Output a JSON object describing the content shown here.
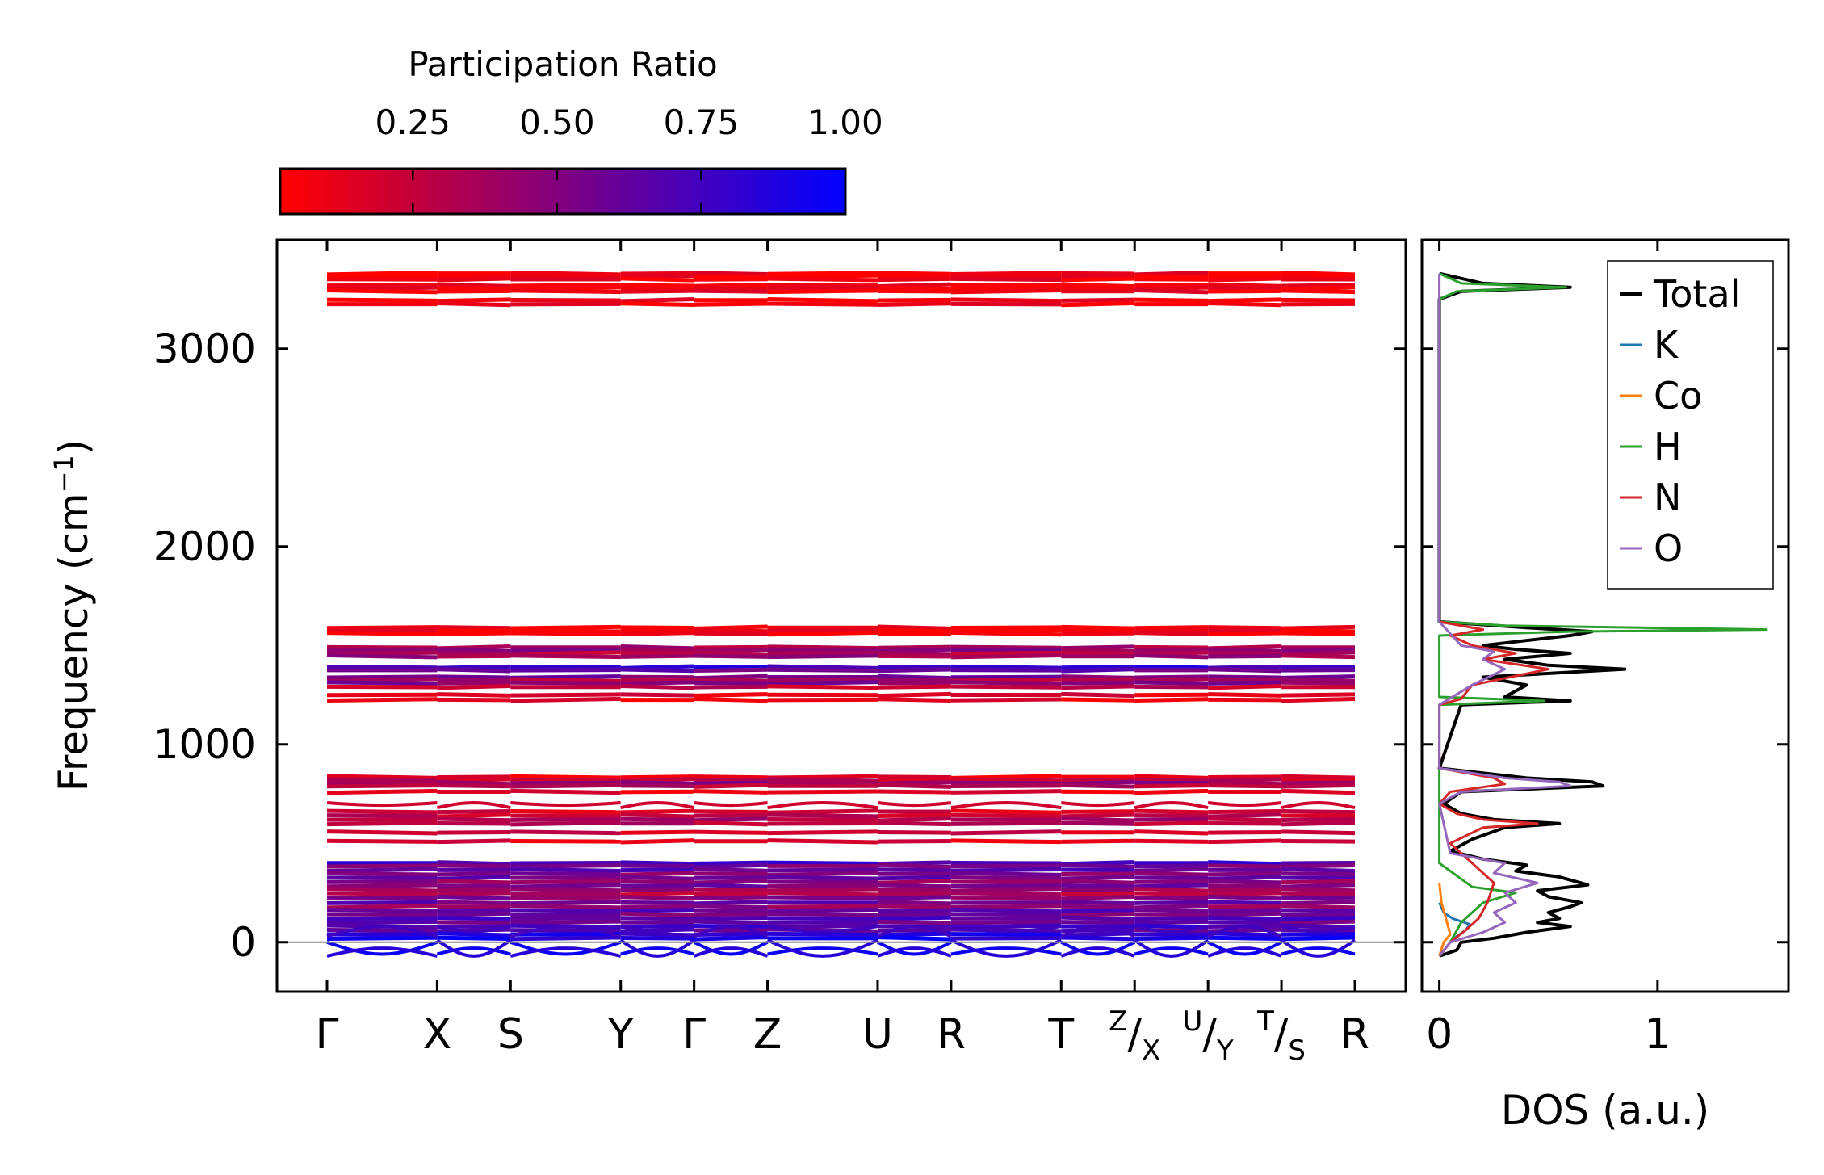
{
  "colorbar": {
    "title": "Participation Ratio",
    "ticks": [
      0.25,
      0.5,
      0.75,
      1.0
    ],
    "tick_labels": [
      "0.25",
      "0.50",
      "0.75",
      "1.00"
    ],
    "range": [
      0.02,
      1.0
    ],
    "color_low": "#ff0000",
    "color_high": "#0000ff"
  },
  "chart_data": [
    {
      "type": "line",
      "title": "",
      "ylabel": "Frequency (cm⁻¹)",
      "ylabel_main": "Frequency (cm",
      "ylabel_sup": "−1",
      "ylabel_close": ")",
      "ylim": [
        -250,
        3550
      ],
      "yticks": [
        0,
        1000,
        2000,
        3000
      ],
      "ytick_labels": [
        "0",
        "1000",
        "2000",
        "3000"
      ],
      "kpath_positions": [
        0,
        1.5,
        2.5,
        4.0,
        5.0,
        6.0,
        7.5,
        8.5,
        10.0,
        11.0,
        12.0,
        13.0,
        14.0
      ],
      "kpath_labels": [
        {
          "main": "Γ"
        },
        {
          "main": "X"
        },
        {
          "main": "S"
        },
        {
          "main": "Y"
        },
        {
          "main": "Γ"
        },
        {
          "main": "Z"
        },
        {
          "main": "U"
        },
        {
          "main": "R"
        },
        {
          "main": "T"
        },
        {
          "sup": "Z",
          "slash": "/",
          "sub": "X"
        },
        {
          "sup": "U",
          "slash": "/",
          "sub": "Y"
        },
        {
          "sup": "T",
          "slash": "/",
          "sub": "S"
        },
        {
          "main": "R"
        }
      ],
      "zero_line": 0,
      "bands_flat": [
        [
          3380,
          0.08
        ],
        [
          3365,
          0.06
        ],
        [
          3350,
          0.07
        ],
        [
          3320,
          0.05
        ],
        [
          3305,
          0.06
        ],
        [
          3290,
          0.08
        ],
        [
          3245,
          0.06
        ],
        [
          3225,
          0.07
        ],
        [
          1590,
          0.05
        ],
        [
          1575,
          0.06
        ],
        [
          1560,
          0.05
        ],
        [
          1490,
          0.35
        ],
        [
          1475,
          0.45
        ],
        [
          1460,
          0.3
        ],
        [
          1445,
          0.4
        ],
        [
          1390,
          0.8
        ],
        [
          1375,
          0.6
        ],
        [
          1340,
          0.55
        ],
        [
          1325,
          0.35
        ],
        [
          1310,
          0.5
        ],
        [
          1290,
          0.25
        ],
        [
          1250,
          0.15
        ],
        [
          1225,
          0.1
        ],
        [
          835,
          0.1
        ],
        [
          820,
          0.25
        ],
        [
          805,
          0.45
        ],
        [
          790,
          0.3
        ],
        [
          760,
          0.12
        ],
        [
          660,
          0.18
        ],
        [
          640,
          0.25
        ],
        [
          620,
          0.35
        ],
        [
          600,
          0.3
        ],
        [
          555,
          0.2
        ],
        [
          510,
          0.15
        ],
        [
          400,
          0.75
        ],
        [
          385,
          0.55
        ],
        [
          365,
          0.65
        ],
        [
          345,
          0.5
        ],
        [
          325,
          0.6
        ],
        [
          305,
          0.45
        ],
        [
          285,
          0.55
        ],
        [
          265,
          0.4
        ],
        [
          245,
          0.3
        ],
        [
          225,
          0.5
        ],
        [
          200,
          0.6
        ],
        [
          180,
          0.45
        ],
        [
          160,
          0.65
        ],
        [
          140,
          0.55
        ],
        [
          120,
          0.7
        ],
        [
          100,
          0.6
        ],
        [
          80,
          0.75
        ],
        [
          60,
          0.65
        ],
        [
          40,
          0.85
        ],
        [
          20,
          0.9
        ]
      ],
      "bands_dispersive": [
        {
          "base": 0,
          "amp": -60,
          "pr": 0.95
        },
        {
          "base": 10,
          "amp": -80,
          "pr": 0.85
        },
        {
          "base": 30,
          "amp": 50,
          "pr": 0.75
        },
        {
          "base": 680,
          "amp": 25,
          "pr": 0.2
        }
      ]
    },
    {
      "type": "line",
      "title": "",
      "xlabel": "DOS (a.u.)",
      "xlim": [
        -0.08,
        1.6
      ],
      "xticks": [
        0,
        1
      ],
      "xtick_labels": [
        "0",
        "1"
      ],
      "ylim": [
        -250,
        3550
      ],
      "legend_position": "upper-right",
      "series": [
        {
          "name": "Total",
          "color": "#000000",
          "freq": [
            -70,
            -40,
            0,
            20,
            50,
            80,
            100,
            120,
            150,
            180,
            200,
            230,
            260,
            290,
            330,
            360,
            390,
            420,
            460,
            520,
            580,
            600,
            620,
            650,
            700,
            760,
            790,
            810,
            830,
            880,
            1200,
            1220,
            1240,
            1300,
            1340,
            1380,
            1400,
            1430,
            1460,
            1480,
            1500,
            1550,
            1570,
            1590,
            1620,
            3250,
            3290,
            3310,
            3330,
            3380
          ],
          "dos": [
            0,
            0.08,
            0.1,
            0.25,
            0.4,
            0.6,
            0.45,
            0.55,
            0.5,
            0.6,
            0.65,
            0.5,
            0.45,
            0.68,
            0.55,
            0.35,
            0.4,
            0.2,
            0.05,
            0.15,
            0.3,
            0.55,
            0.25,
            0.1,
            0.02,
            0.1,
            0.75,
            0.7,
            0.4,
            0,
            0.1,
            0.6,
            0.3,
            0.4,
            0.2,
            0.85,
            0.5,
            0.3,
            0.6,
            0.35,
            0.2,
            0.6,
            0.7,
            0.4,
            0,
            0,
            0.1,
            0.6,
            0.2,
            0
          ]
        },
        {
          "name": "K",
          "color": "#1f77b4",
          "freq": [
            -70,
            0,
            30,
            60,
            90,
            120,
            150,
            200
          ],
          "dos": [
            0,
            0.05,
            0.08,
            0.12,
            0.14,
            0.06,
            0.02,
            0
          ]
        },
        {
          "name": "Co",
          "color": "#ff7f0e",
          "freq": [
            -70,
            0,
            40,
            80,
            120,
            200,
            300
          ],
          "dos": [
            0,
            0.02,
            0.05,
            0.04,
            0.03,
            0.01,
            0
          ]
        },
        {
          "name": "H",
          "color": "#2ca02c",
          "freq": [
            -70,
            0,
            100,
            150,
            200,
            250,
            280,
            320,
            400,
            1200,
            1220,
            1240,
            1550,
            1570,
            1580,
            1600,
            1620,
            3250,
            3290,
            3310,
            3330,
            3380
          ],
          "dos": [
            0,
            0.05,
            0.1,
            0.15,
            0.2,
            0.35,
            0.15,
            0.1,
            0,
            0,
            0.48,
            0,
            0,
            0.6,
            1.5,
            0.3,
            0,
            0,
            0.08,
            0.58,
            0.1,
            0
          ]
        },
        {
          "name": "N",
          "color": "#d62728",
          "freq": [
            -70,
            0,
            60,
            120,
            200,
            300,
            400,
            500,
            580,
            600,
            620,
            650,
            700,
            760,
            800,
            830,
            880,
            1200,
            1230,
            1300,
            1380,
            1430,
            1460,
            1500,
            1550,
            1580,
            1620
          ],
          "dos": [
            0,
            0.05,
            0.12,
            0.18,
            0.22,
            0.25,
            0.15,
            0.05,
            0.2,
            0.45,
            0.2,
            0.08,
            0,
            0.05,
            0.3,
            0.25,
            0,
            0,
            0.1,
            0.15,
            0.5,
            0.2,
            0.35,
            0.15,
            0.05,
            0.2,
            0
          ]
        },
        {
          "name": "O",
          "color": "#9467bd",
          "freq": [
            -70,
            0,
            50,
            100,
            150,
            200,
            250,
            300,
            350,
            400,
            450,
            700,
            760,
            790,
            810,
            830,
            880,
            1200,
            1300,
            1380,
            1430,
            1470,
            1500,
            1620,
            3380
          ],
          "dos": [
            0,
            0.05,
            0.2,
            0.3,
            0.25,
            0.35,
            0.3,
            0.45,
            0.25,
            0.3,
            0.05,
            0,
            0.1,
            0.6,
            0.55,
            0.3,
            0,
            0,
            0.15,
            0.3,
            0.2,
            0.25,
            0.1,
            0,
            0
          ]
        }
      ]
    }
  ]
}
